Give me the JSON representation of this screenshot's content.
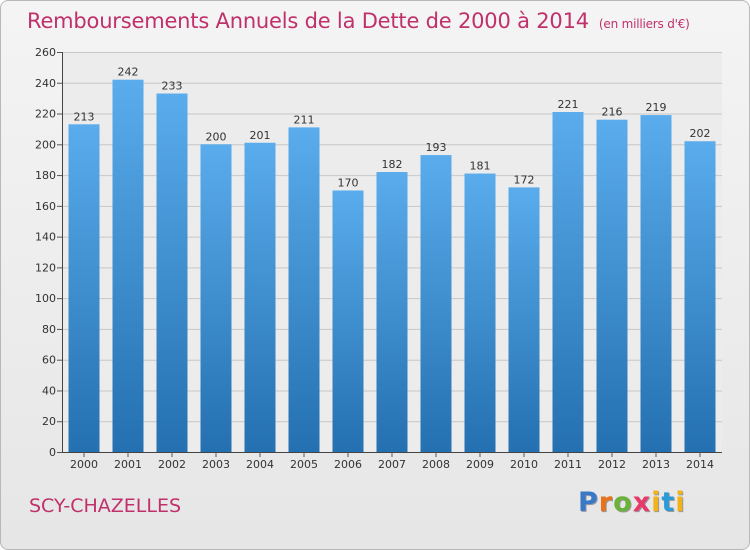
{
  "header": {
    "title": "Remboursements Annuels de la Dette de 2000 à 2014",
    "unit": "(en milliers d'€)"
  },
  "footer": {
    "town": "SCY-CHAZELLES",
    "logo_parts": [
      "P",
      "r",
      "o",
      "x",
      "i",
      "t",
      "i"
    ]
  },
  "colors": {
    "bar_top": "#5aacec",
    "bar_bottom": "#2470b0",
    "accent": "#c0306a",
    "grid": "#c8c8c8"
  },
  "chart_data": {
    "type": "bar",
    "title": "Remboursements Annuels de la Dette de 2000 à 2014",
    "xlabel": "",
    "ylabel": "",
    "ylim": [
      0,
      260
    ],
    "yticks": [
      0,
      20,
      40,
      60,
      80,
      100,
      120,
      140,
      160,
      180,
      200,
      220,
      240,
      260
    ],
    "grid": true,
    "categories": [
      "2000",
      "2001",
      "2002",
      "2003",
      "2004",
      "2005",
      "2006",
      "2007",
      "2008",
      "2009",
      "2010",
      "2011",
      "2012",
      "2013",
      "2014"
    ],
    "values": [
      213,
      242,
      233,
      200,
      201,
      211,
      170,
      182,
      193,
      181,
      172,
      221,
      216,
      219,
      202
    ]
  }
}
